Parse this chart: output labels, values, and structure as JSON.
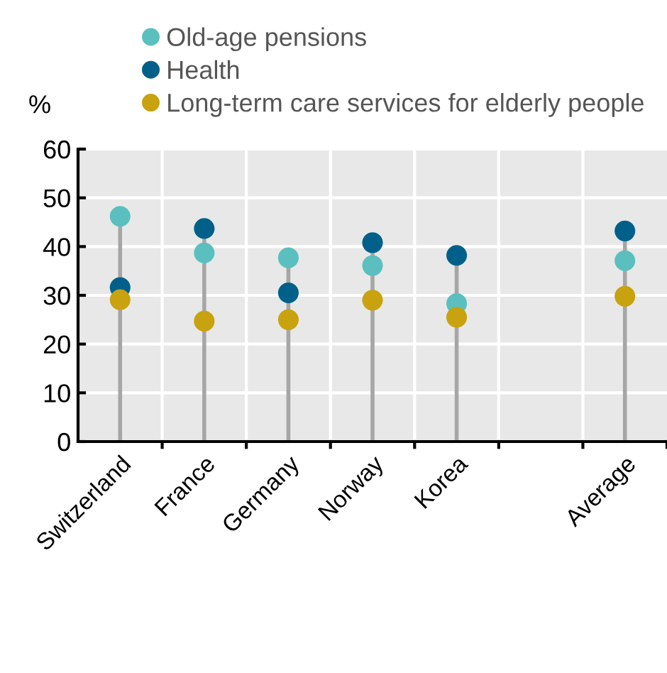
{
  "chart_data": {
    "type": "lollipop",
    "categories": [
      "Switzerland",
      "France",
      "Germany",
      "Norway",
      "Korea",
      null,
      "Average"
    ],
    "series": [
      {
        "name": "Old-age pensions",
        "color": "#5bbfc0",
        "values": [
          46.2,
          38.7,
          37.7,
          36.1,
          28.3,
          null,
          37.1
        ]
      },
      {
        "name": "Health",
        "color": "#00608a",
        "values": [
          31.6,
          43.7,
          30.5,
          40.8,
          38.2,
          null,
          43.2
        ]
      },
      {
        "name": "Long-term care services for elderly people",
        "color": "#c8a20f",
        "values": [
          29.1,
          24.7,
          25.0,
          29.0,
          25.5,
          null,
          29.8
        ]
      }
    ],
    "ylabel": "%",
    "ylim": [
      0,
      60
    ],
    "yticks": [
      0,
      10,
      20,
      30,
      40,
      50,
      60
    ],
    "grid": true,
    "legend": "top",
    "marker": "circle"
  }
}
